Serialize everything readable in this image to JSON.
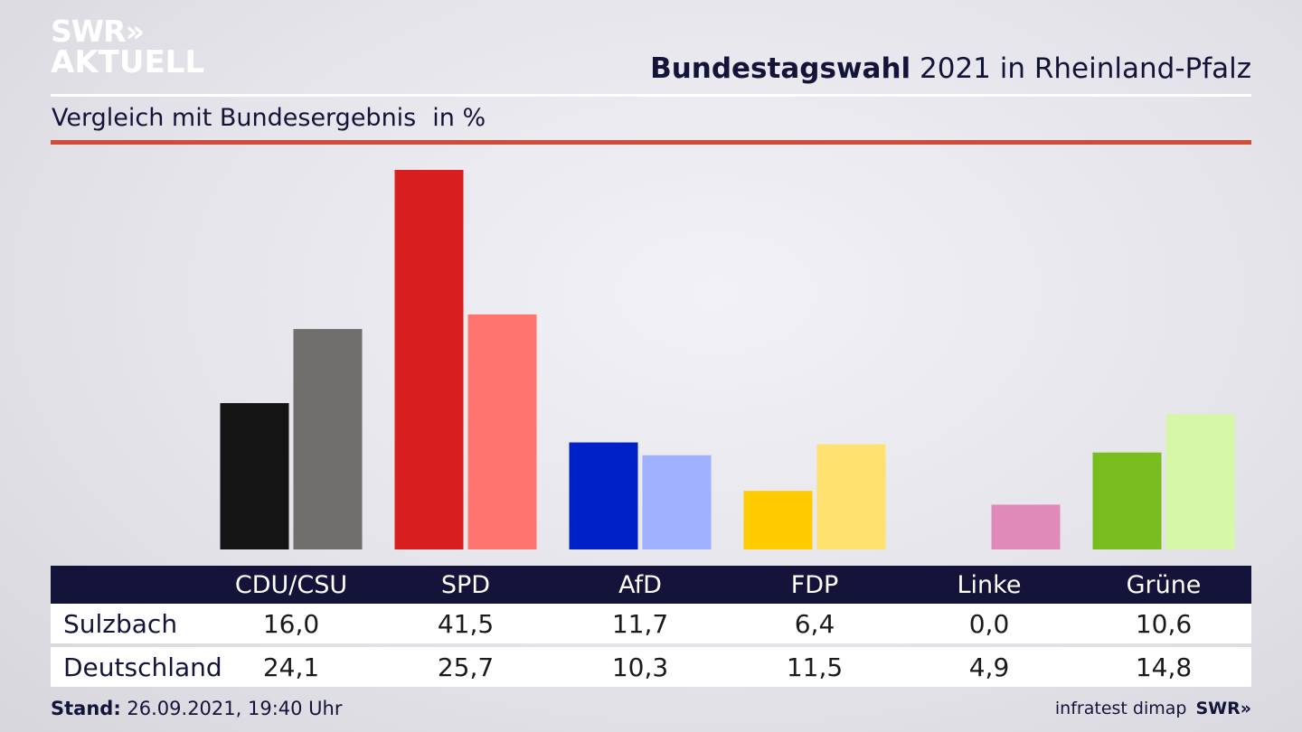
{
  "header": {
    "logo_line1": "SWR»",
    "logo_line2": "AKTUELL",
    "title_bold": "Bundestagswahl",
    "title_rest": " 2021 in Rheinland-Pfalz",
    "subtitle": "Vergleich mit Bundesergebnis",
    "unit": "in %"
  },
  "chart_data": {
    "type": "bar",
    "categories": [
      "CDU/CSU",
      "SPD",
      "AfD",
      "FDP",
      "Linke",
      "Grüne"
    ],
    "series": [
      {
        "name": "Sulzbach",
        "values": [
          16.0,
          41.5,
          11.7,
          6.4,
          0.0,
          10.6
        ],
        "colors": [
          "#141414",
          "#d81e1e",
          "#0020c8",
          "#ffcc00",
          "#b43c7a",
          "#78bc1e"
        ]
      },
      {
        "name": "Deutschland",
        "values": [
          24.1,
          25.7,
          10.3,
          11.5,
          4.9,
          14.8
        ],
        "colors": [
          "#706f6d",
          "#ff746e",
          "#9fb0ff",
          "#ffe170",
          "#e08ab9",
          "#d6f6a8"
        ]
      }
    ],
    "ylim": [
      0,
      41.5
    ],
    "grid": false
  },
  "table": {
    "rows": [
      {
        "label": "Sulzbach",
        "values": [
          "16,0",
          "41,5",
          "11,7",
          "6,4",
          "0,0",
          "10,6"
        ]
      },
      {
        "label": "Deutschland",
        "values": [
          "24,1",
          "25,7",
          "10,3",
          "11,5",
          "4,9",
          "14,8"
        ]
      }
    ]
  },
  "footer": {
    "stand_label": "Stand:",
    "stand_value": " 26.09.2021, 19:40 Uhr",
    "source": "infratest dimap",
    "brand": "SWR»"
  },
  "colors": {
    "header_bg": "#14143a",
    "accent_line": "#d24a3a"
  }
}
